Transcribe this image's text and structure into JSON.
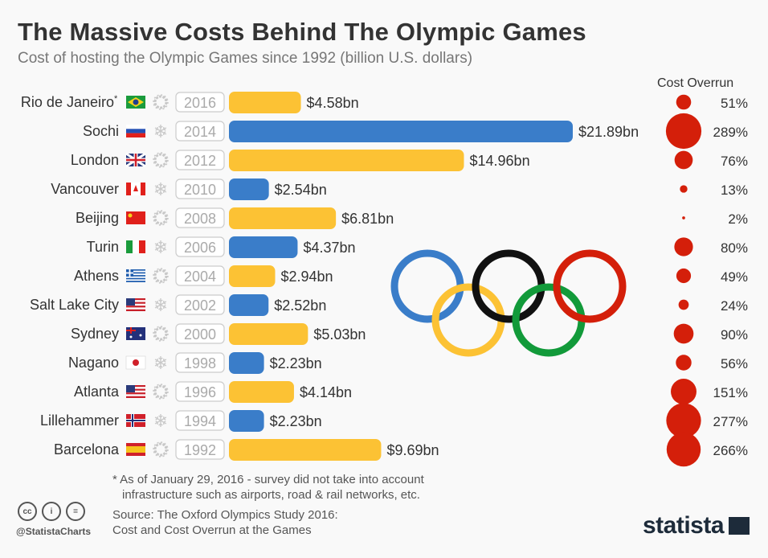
{
  "title": "The Massive Costs Behind The Olympic Games",
  "subtitle": "Cost of hosting the Olympic Games since 1992 (billion U.S. dollars)",
  "colors": {
    "summer": "#fcc234",
    "winter": "#3a7dc9",
    "overrun": "#d41f0a",
    "text": "#333333"
  },
  "chart_data": {
    "type": "bar",
    "orientation": "horizontal",
    "title": "The Massive Costs Behind The Olympic Games",
    "unit": "billion U.S. dollars",
    "overrun_header": "Cost Overrun",
    "rows": [
      {
        "city": "Rio de Janeiro*",
        "flag": "br",
        "season": "summer",
        "year": "2016",
        "cost": 4.58,
        "cost_label": "$4.58bn",
        "overrun": 51,
        "overrun_label": "51%"
      },
      {
        "city": "Sochi",
        "flag": "ru",
        "season": "winter",
        "year": "2014",
        "cost": 21.89,
        "cost_label": "$21.89bn",
        "overrun": 289,
        "overrun_label": "289%"
      },
      {
        "city": "London",
        "flag": "gb",
        "season": "summer",
        "year": "2012",
        "cost": 14.96,
        "cost_label": "$14.96bn",
        "overrun": 76,
        "overrun_label": "76%"
      },
      {
        "city": "Vancouver",
        "flag": "ca",
        "season": "winter",
        "year": "2010",
        "cost": 2.54,
        "cost_label": "$2.54bn",
        "overrun": 13,
        "overrun_label": "13%"
      },
      {
        "city": "Beijing",
        "flag": "cn",
        "season": "summer",
        "year": "2008",
        "cost": 6.81,
        "cost_label": "$6.81bn",
        "overrun": 2,
        "overrun_label": "2%"
      },
      {
        "city": "Turin",
        "flag": "it",
        "season": "winter",
        "year": "2006",
        "cost": 4.37,
        "cost_label": "$4.37bn",
        "overrun": 80,
        "overrun_label": "80%"
      },
      {
        "city": "Athens",
        "flag": "gr",
        "season": "summer",
        "year": "2004",
        "cost": 2.94,
        "cost_label": "$2.94bn",
        "overrun": 49,
        "overrun_label": "49%"
      },
      {
        "city": "Salt Lake City",
        "flag": "us",
        "season": "winter",
        "year": "2002",
        "cost": 2.52,
        "cost_label": "$2.52bn",
        "overrun": 24,
        "overrun_label": "24%"
      },
      {
        "city": "Sydney",
        "flag": "au",
        "season": "summer",
        "year": "2000",
        "cost": 5.03,
        "cost_label": "$5.03bn",
        "overrun": 90,
        "overrun_label": "90%"
      },
      {
        "city": "Nagano",
        "flag": "jp",
        "season": "winter",
        "year": "1998",
        "cost": 2.23,
        "cost_label": "$2.23bn",
        "overrun": 56,
        "overrun_label": "56%"
      },
      {
        "city": "Atlanta",
        "flag": "us",
        "season": "summer",
        "year": "1996",
        "cost": 4.14,
        "cost_label": "$4.14bn",
        "overrun": 151,
        "overrun_label": "151%"
      },
      {
        "city": "Lillehammer",
        "flag": "no",
        "season": "winter",
        "year": "1994",
        "cost": 2.23,
        "cost_label": "$2.23bn",
        "overrun": 277,
        "overrun_label": "277%"
      },
      {
        "city": "Barcelona",
        "flag": "es",
        "season": "summer",
        "year": "1992",
        "cost": 9.69,
        "cost_label": "$9.69bn",
        "overrun": 266,
        "overrun_label": "266%"
      }
    ]
  },
  "footnote_line1": "* As of January 29, 2016 - survey did not take into account",
  "footnote_line2": "infrastructure such as airports, road & rail networks, etc.",
  "source_line1": "Source: The Oxford Olympics Study 2016:",
  "source_line2": "Cost and Cost Overrun at the Games",
  "handle": "@StatistaCharts",
  "license_icons": [
    "cc",
    "i",
    "="
  ],
  "logo_text": "statista"
}
